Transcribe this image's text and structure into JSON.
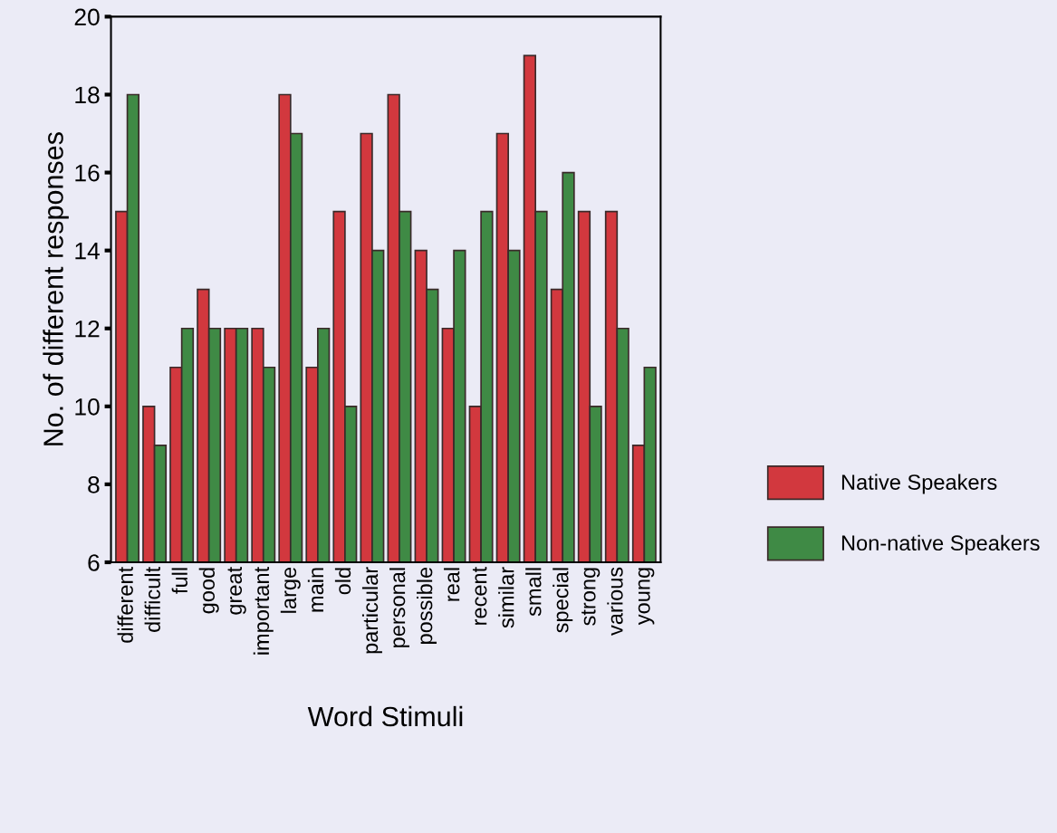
{
  "chart_data": {
    "type": "bar",
    "xlabel": "Word Stimuli",
    "ylabel": "No. of different responses",
    "categories": [
      "different",
      "difficult",
      "full",
      "good",
      "great",
      "important",
      "large",
      "main",
      "old",
      "particular",
      "personal",
      "possible",
      "real",
      "recent",
      "similar",
      "small",
      "special",
      "strong",
      "various",
      "young"
    ],
    "series": [
      {
        "name": "Native Speakers",
        "color": "#d2383e",
        "values": [
          15,
          10,
          11,
          13,
          12,
          12,
          18,
          11,
          15,
          17,
          18,
          14,
          12,
          10,
          17,
          19,
          13,
          15,
          15,
          9
        ]
      },
      {
        "name": "Non-native Speakers",
        "color": "#3f8a45",
        "values": [
          18,
          9,
          12,
          12,
          12,
          11,
          17,
          12,
          10,
          14,
          15,
          13,
          14,
          15,
          14,
          15,
          16,
          10,
          12,
          11
        ]
      }
    ],
    "ylim": [
      6,
      20
    ],
    "yticks": [
      6,
      8,
      10,
      12,
      14,
      16,
      18,
      20
    ],
    "grid": false,
    "legend": "right"
  }
}
